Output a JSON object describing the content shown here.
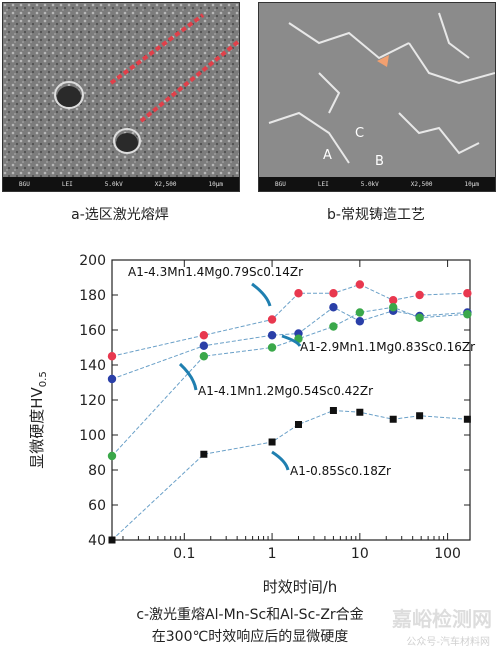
{
  "panel_a": {
    "caption": "a-选区激光熔焊",
    "scale_bar": [
      "BGU",
      "LEI",
      "5.0kV",
      "X2,500",
      "10μm"
    ]
  },
  "panel_b": {
    "caption": "b-常规铸造工艺",
    "scale_bar": [
      "BGU",
      "LEI",
      "5.0kV",
      "X2,500",
      "10μm"
    ],
    "labels": [
      "A",
      "B",
      "C"
    ]
  },
  "chart_caption_line1": "c-激光重熔Al-Mn-Sc和Al-Sc-Zr合金",
  "chart_caption_line2": "在300℃时效响应后的显微硬度",
  "watermark": "嘉峪检测网",
  "watermark_sub": "公众号-汽车材料网",
  "colors": {
    "red": "#e8384f",
    "blue": "#2a3fa8",
    "green": "#3aa84a",
    "black": "#111111",
    "line": "#6aa0c8",
    "arrow": "#1f7fb0"
  },
  "chart_data": {
    "type": "scatter",
    "xscale": "log",
    "xlim": [
      0.015,
      180
    ],
    "ylim": [
      40,
      200
    ],
    "yticks": [
      40,
      60,
      80,
      100,
      120,
      140,
      160,
      180,
      200
    ],
    "xticks": [
      0.1,
      1,
      10,
      100
    ],
    "xtick_labels": [
      "0.1",
      "1",
      "10",
      "100"
    ],
    "xlabel": "时效时间/h",
    "ylabel_main": "显微硬度HV",
    "ylabel_sub": "0.5",
    "series": [
      {
        "name": "A1-4.3Mn1.4Mg0.79Sc0.14Zr",
        "color": "#e8384f",
        "x": [
          0.015,
          0.167,
          1,
          2,
          5,
          10,
          24,
          48,
          168
        ],
        "y": [
          145,
          157,
          166,
          181,
          181,
          186,
          177,
          180,
          181
        ]
      },
      {
        "name": "A1-2.9Mn1.1Mg0.83Sc0.16Zr",
        "color": "#2a3fa8",
        "x": [
          0.015,
          0.167,
          1,
          2,
          5,
          10,
          24,
          48,
          168
        ],
        "y": [
          132,
          151,
          157,
          158,
          173,
          165,
          171,
          168,
          170
        ]
      },
      {
        "name": "A1-4.1Mn1.2Mg0.54Sc0.42Zr",
        "color": "#3aa84a",
        "x": [
          0.015,
          0.167,
          1,
          2,
          5,
          10,
          24,
          48,
          168
        ],
        "y": [
          88,
          145,
          150,
          155,
          162,
          170,
          173,
          167,
          169
        ]
      },
      {
        "name": "A1-0.85Sc0.18Zr",
        "color": "#111111",
        "x": [
          0.015,
          0.167,
          1,
          2,
          5,
          10,
          24,
          48,
          168
        ],
        "y": [
          40,
          89,
          96,
          106,
          114,
          113,
          109,
          111,
          109
        ]
      }
    ]
  }
}
